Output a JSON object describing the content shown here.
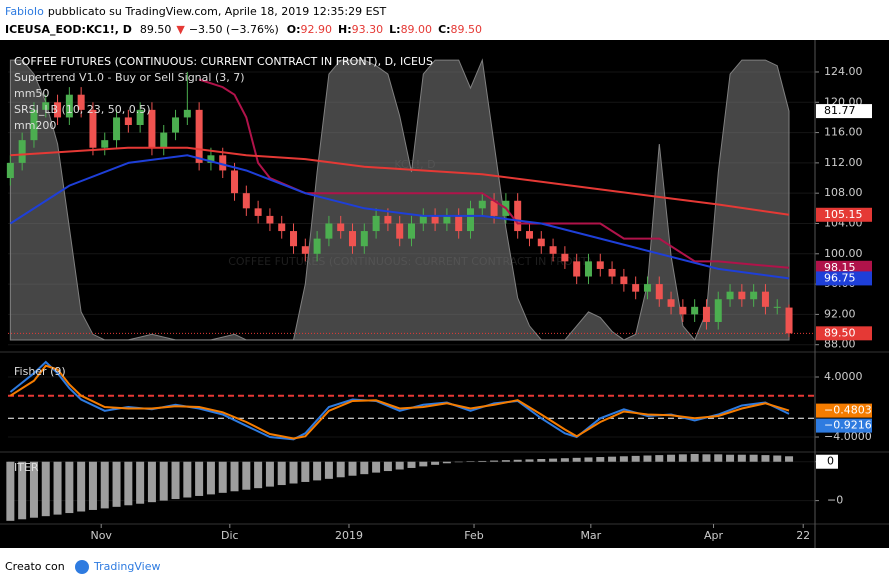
{
  "header": {
    "author": "FabioIo",
    "published": "pubblicato su TradingView.com, Aprile 18, 2019 12:35:29 EST",
    "symbol": "ICEUSA_EOD:KC1!, D",
    "last": "89.50",
    "arrow": "▼",
    "change": "−3.50 (−3.76%)",
    "ohlc": [
      {
        "label": "O:",
        "value": "92.90"
      },
      {
        "label": "H:",
        "value": "93.30"
      },
      {
        "label": "L:",
        "value": "89.00"
      },
      {
        "label": "C:",
        "value": "89.50"
      }
    ]
  },
  "footer": {
    "text": "Creato con",
    "brand": "TradingView"
  },
  "xaxis": {
    "xlim": [
      -0.2,
      68.2
    ],
    "xticks": [
      {
        "value": 7.7,
        "label": "Nov"
      },
      {
        "value": 18.6,
        "label": "Dic"
      },
      {
        "value": 28.7,
        "label": "2019"
      },
      {
        "value": 39.3,
        "label": "Feb"
      },
      {
        "value": 49.2,
        "label": "Mar"
      },
      {
        "value": 59.6,
        "label": "Apr"
      },
      {
        "value": 67.2,
        "label": "22"
      }
    ]
  },
  "chart_data": [
    {
      "type": "candlestick",
      "title": "COFFEE FUTURES (CONTINUOUS: CURRENT CONTRACT IN FRONT), D, ICEUS",
      "watermark": "KC1!, D",
      "watermark_name": "COFFEE FUTURES (CONTINUOUS: CURRENT CONTRACT IN FRONT)",
      "up_color": "#4caf50",
      "down_color": "#ef5350",
      "last_label": "89.50",
      "last_color": "#e53935",
      "candles": {
        "open": [
          110,
          112,
          115,
          119,
          120,
          118,
          121,
          119,
          114,
          115,
          118,
          117,
          119,
          114,
          116,
          118,
          119,
          112,
          113,
          111,
          108,
          106,
          105,
          104,
          103,
          101,
          100,
          102,
          104,
          103,
          101,
          103,
          105,
          104,
          102,
          104,
          105,
          104,
          105,
          103,
          106,
          107,
          105,
          107,
          103,
          102,
          101,
          100,
          99,
          97,
          99,
          98,
          97,
          96,
          95,
          96,
          94,
          93,
          92,
          93,
          91,
          94,
          95,
          94,
          95,
          93,
          92.9
        ],
        "high": [
          113,
          116,
          120,
          121,
          121,
          122,
          122,
          120,
          116,
          119,
          119,
          120,
          120,
          117,
          119,
          124,
          120,
          114,
          114,
          112,
          109,
          107,
          106,
          105,
          104,
          102,
          103,
          105,
          105,
          104,
          104,
          106,
          106,
          105,
          105,
          106,
          106,
          106,
          106,
          107,
          108,
          108,
          108,
          108,
          104,
          103,
          102,
          101,
          100,
          100,
          100,
          99,
          98,
          97,
          97,
          97,
          95,
          94,
          94,
          94,
          95,
          96,
          96,
          96,
          96,
          94,
          93.3
        ],
        "low": [
          109,
          111,
          114,
          118,
          117,
          117,
          118,
          113,
          113,
          114,
          116,
          116,
          113,
          113,
          115,
          117,
          111,
          111,
          110,
          107,
          105,
          104,
          103,
          102,
          100,
          99,
          99,
          101,
          102,
          100,
          100,
          102,
          103,
          101,
          101,
          103,
          103,
          103,
          102,
          102,
          105,
          104,
          104,
          102,
          101,
          100,
          99,
          98,
          96,
          96,
          97,
          96,
          95,
          94,
          94,
          93,
          92,
          91,
          91,
          90,
          90,
          93,
          93,
          93,
          92,
          92,
          89
        ],
        "close": [
          112,
          115,
          119,
          120,
          118,
          121,
          119,
          114,
          115,
          118,
          117,
          119,
          114,
          116,
          118,
          119,
          112,
          113,
          111,
          108,
          106,
          105,
          104,
          103,
          101,
          100,
          102,
          104,
          103,
          101,
          103,
          105,
          104,
          102,
          104,
          105,
          104,
          105,
          103,
          106,
          107,
          105,
          107,
          103,
          102,
          101,
          100,
          99,
          97,
          99,
          98,
          97,
          96,
          95,
          96,
          94,
          93,
          92,
          93,
          91,
          94,
          95,
          94,
          95,
          93,
          93,
          89.5
        ]
      },
      "ylim": [
        87.3,
        126.9
      ],
      "yticks": [
        {
          "value": 88,
          "label": "88.00"
        },
        {
          "value": 92,
          "label": "92.00"
        },
        {
          "value": 96,
          "label": "96.00"
        },
        {
          "value": 100,
          "label": "100.00"
        },
        {
          "value": 104,
          "label": "104.00"
        },
        {
          "value": 108,
          "label": "108.00"
        },
        {
          "value": 112,
          "label": "112.00"
        },
        {
          "value": 116,
          "label": "116.00"
        },
        {
          "value": 120,
          "label": "120.00"
        },
        {
          "value": 124,
          "label": "124.00"
        }
      ],
      "y2lim": [
        -3.6,
        103.6
      ],
      "series": [
        {
          "name": "Supertrend V1.0 - Buy or Sell Signal (3, 7)",
          "color": "#b0134a",
          "last_label": "98.15",
          "x": [
            16,
            18,
            19,
            20,
            21,
            22,
            25,
            28,
            40,
            42,
            43,
            46,
            50,
            52,
            55,
            58,
            60,
            66
          ],
          "values": [
            123,
            122,
            121,
            118,
            112,
            110,
            108,
            108,
            108,
            106,
            104,
            104,
            104,
            102,
            102,
            99,
            99,
            98.15
          ]
        },
        {
          "name": "mm50",
          "color": "#1e3fd8",
          "last_label": "96.75",
          "x": [
            0,
            5,
            10,
            15,
            20,
            25,
            30,
            35,
            40,
            45,
            50,
            55,
            60,
            66
          ],
          "values": [
            104,
            109,
            112,
            113,
            111,
            108,
            106,
            105,
            105,
            104,
            102,
            100,
            98,
            96.75
          ]
        },
        {
          "name": "SRSI_LB (10, 23, 50, 0.5)",
          "color": "#808080",
          "axis": "y2",
          "area": true,
          "last_label": "81.77",
          "values": [
            100,
            100,
            95,
            85,
            70,
            40,
            10,
            2,
            0,
            0,
            0,
            1,
            2,
            1,
            0,
            0,
            0,
            0,
            1,
            2,
            0,
            0,
            0,
            0,
            0,
            20,
            60,
            95,
            100,
            100,
            100,
            98,
            95,
            80,
            60,
            95,
            100,
            100,
            100,
            90,
            100,
            70,
            40,
            15,
            5,
            0,
            0,
            0,
            5,
            10,
            8,
            3,
            0,
            2,
            20,
            70,
            30,
            5,
            0,
            10,
            60,
            95,
            100,
            100,
            100,
            98,
            81.77
          ]
        },
        {
          "name": "mm200",
          "color": "#e53935",
          "last_label": "105.15",
          "x": [
            0,
            5,
            10,
            15,
            20,
            25,
            30,
            35,
            40,
            45,
            50,
            55,
            60,
            66
          ],
          "values": [
            113,
            113.5,
            114,
            114,
            113,
            112.5,
            111.5,
            111,
            110.5,
            109.5,
            108.5,
            107.5,
            106.5,
            105.15
          ]
        }
      ]
    },
    {
      "type": "line",
      "title": "Fisher (9)",
      "ylim": [
        -5.73,
        6.93
      ],
      "yticks": [
        {
          "value": 4,
          "label": "4.0000"
        },
        {
          "value": -4,
          "label": "−4.0000"
        }
      ],
      "hlines": [
        {
          "value": 1.5,
          "color": "#e53935"
        },
        {
          "value": -1.5,
          "color": "#ffffff"
        }
      ],
      "series": [
        {
          "color": "#2e7be0",
          "last_label": "−0.9216",
          "x": [
            0,
            2,
            3,
            4,
            5,
            6,
            8,
            10,
            12,
            14,
            16,
            18,
            20,
            22,
            24,
            25,
            27,
            29,
            31,
            33,
            35,
            37,
            39,
            41,
            43,
            45,
            47,
            48,
            50,
            52,
            54,
            56,
            58,
            60,
            62,
            64,
            66
          ],
          "values": [
            2,
            4.5,
            6,
            4.5,
            2.5,
            1,
            -0.5,
            0,
            -0.3,
            0.3,
            -0.2,
            -1,
            -2.5,
            -4,
            -4.3,
            -3.5,
            0,
            1,
            0.8,
            -0.5,
            0.3,
            0.6,
            -0.5,
            0.5,
            0.8,
            -1.5,
            -3.5,
            -4,
            -1.5,
            -0.3,
            -1.2,
            -1,
            -1.8,
            -1,
            0.2,
            0.6,
            -0.9216
          ]
        },
        {
          "color": "#f57c00",
          "last_label": "−0.4803",
          "x": [
            0,
            2,
            3,
            4,
            5,
            6,
            8,
            10,
            12,
            14,
            16,
            18,
            20,
            22,
            24,
            25,
            27,
            29,
            31,
            33,
            35,
            37,
            39,
            41,
            43,
            45,
            47,
            48,
            50,
            52,
            54,
            56,
            58,
            60,
            62,
            64,
            66
          ],
          "values": [
            1.5,
            3.5,
            5.5,
            5,
            3,
            1.5,
            0,
            -0.2,
            -0.2,
            0.1,
            0,
            -0.7,
            -2,
            -3.6,
            -4.2,
            -3.9,
            -0.5,
            0.8,
            0.9,
            -0.2,
            0,
            0.5,
            -0.2,
            0.3,
            0.9,
            -1,
            -3,
            -3.9,
            -2,
            -0.6,
            -1,
            -1.1,
            -1.5,
            -1.2,
            -0.2,
            0.5,
            -0.4803
          ]
        }
      ]
    },
    {
      "type": "bar",
      "title": "ITER",
      "color": "#9e9e9e",
      "ylim": [
        -7.75,
        1.25
      ],
      "yticks": [
        0,
        {
          "value": -5,
          "label": "−0"
        }
      ],
      "values": [
        -7.6,
        -7.4,
        -7.2,
        -7,
        -6.8,
        -6.6,
        -6.4,
        -6.2,
        -6,
        -5.8,
        -5.6,
        -5.4,
        -5.2,
        -5,
        -4.8,
        -4.6,
        -4.4,
        -4.2,
        -4,
        -3.8,
        -3.6,
        -3.4,
        -3.2,
        -3,
        -2.8,
        -2.6,
        -2.4,
        -2.2,
        -2,
        -1.8,
        -1.6,
        -1.4,
        -1.2,
        -1,
        -0.8,
        -0.6,
        -0.4,
        -0.2,
        0,
        0.05,
        0.1,
        0.15,
        0.2,
        0.25,
        0.3,
        0.35,
        0.4,
        0.45,
        0.5,
        0.55,
        0.6,
        0.65,
        0.7,
        0.75,
        0.8,
        0.85,
        0.9,
        0.95,
        1,
        0.95,
        0.95,
        0.9,
        0.9,
        0.9,
        0.85,
        0.8,
        0.7
      ]
    }
  ]
}
